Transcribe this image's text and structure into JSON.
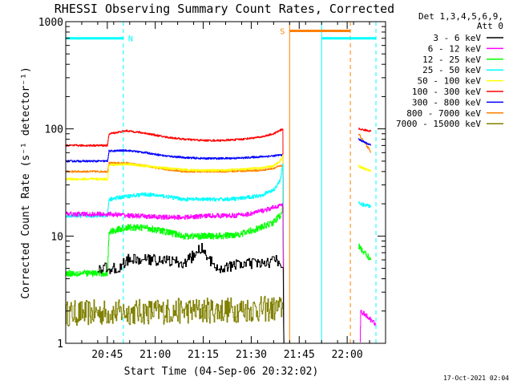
{
  "chart_data": {
    "type": "line",
    "title": "RHESSI Observing Summary Count Rates, Corrected",
    "xlabel": "Start Time (04-Sep-06 20:32:02)",
    "ylabel": "Corrected Count Rate (s⁻¹ detector⁻¹)",
    "y_scale": "log",
    "ylim": [
      1,
      1000
    ],
    "y_ticks": [
      {
        "value": 1,
        "label": "1"
      },
      {
        "value": 10,
        "label": "10"
      },
      {
        "value": 100,
        "label": "100"
      },
      {
        "value": 1000,
        "label": "1000"
      }
    ],
    "xlim_minutes_after_start": [
      0,
      100
    ],
    "x_ticks": [
      {
        "minute": 13,
        "label": "20:45"
      },
      {
        "minute": 28,
        "label": "21:00"
      },
      {
        "minute": 43,
        "label": "21:15"
      },
      {
        "minute": 58,
        "label": "21:30"
      },
      {
        "minute": 73,
        "label": "21:45"
      },
      {
        "minute": 88,
        "label": "22:00"
      }
    ],
    "legend_header": [
      "Det 1,3,4,5,6,9,",
      "Att 0"
    ],
    "legend_position": "right",
    "series": [
      {
        "name": "3 - 6 keV",
        "color": "#000000",
        "points": [
          [
            10,
            5
          ],
          [
            17,
            5
          ],
          [
            19,
            6
          ],
          [
            25,
            6
          ],
          [
            31,
            6
          ],
          [
            37,
            5.5
          ],
          [
            43,
            8
          ],
          [
            44,
            6
          ],
          [
            49,
            5
          ],
          [
            55,
            5.5
          ],
          [
            61,
            5.5
          ],
          [
            67,
            6
          ],
          [
            68,
            5
          ],
          [
            68.2,
            1
          ]
        ],
        "post_points": [],
        "noise": 0.12,
        "step": 0.25,
        "start_minute": 10
      },
      {
        "name": "6 - 12 keV",
        "color": "#ff00ff",
        "points": [
          [
            0,
            16
          ],
          [
            13,
            16
          ],
          [
            14,
            16
          ],
          [
            20,
            15.5
          ],
          [
            30,
            15
          ],
          [
            38,
            15
          ],
          [
            45,
            15.5
          ],
          [
            52,
            15.5
          ],
          [
            57,
            16
          ],
          [
            64,
            18
          ],
          [
            67,
            19.5
          ],
          [
            68,
            19
          ],
          [
            68.2,
            1
          ]
        ],
        "post_points": [
          [
            92,
            1
          ],
          [
            92.2,
            2
          ],
          [
            97,
            1.5
          ]
        ],
        "noise": 0.05,
        "step": 0.1
      },
      {
        "name": "12 - 25 keV",
        "color": "#00ff00",
        "points": [
          [
            0,
            4.5
          ],
          [
            13,
            4.5
          ],
          [
            13.5,
            11
          ],
          [
            19,
            12
          ],
          [
            25,
            12
          ],
          [
            31,
            11
          ],
          [
            37,
            10
          ],
          [
            43,
            10
          ],
          [
            49,
            10
          ],
          [
            55,
            10.5
          ],
          [
            61,
            12
          ],
          [
            65,
            13.5
          ],
          [
            67,
            15.5
          ],
          [
            68,
            19
          ],
          [
            68.2,
            1
          ]
        ],
        "post_points": [
          [
            91.5,
            8
          ],
          [
            95.5,
            6
          ]
        ],
        "noise": 0.07,
        "step": 0.1
      },
      {
        "name": "25 - 50 keV",
        "color": "#00ffff",
        "points": [
          [
            0,
            15.5
          ],
          [
            13,
            15.5
          ],
          [
            13.5,
            22
          ],
          [
            19,
            23.5
          ],
          [
            25,
            24.5
          ],
          [
            31,
            23.5
          ],
          [
            37,
            22
          ],
          [
            43,
            22
          ],
          [
            49,
            22
          ],
          [
            55,
            22.5
          ],
          [
            61,
            24
          ],
          [
            65,
            27
          ],
          [
            67,
            33
          ],
          [
            68,
            50
          ],
          [
            68.2,
            1
          ]
        ],
        "post_points": [
          [
            91.5,
            20
          ],
          [
            95.5,
            19
          ]
        ],
        "noise": 0.04,
        "step": 0.1
      },
      {
        "name": "50 - 100 keV",
        "color": "#ffff00",
        "points": [
          [
            0,
            34
          ],
          [
            13,
            34
          ],
          [
            13.5,
            46
          ],
          [
            19,
            47
          ],
          [
            25,
            45
          ],
          [
            31,
            43
          ],
          [
            37,
            41.5
          ],
          [
            43,
            41
          ],
          [
            49,
            41
          ],
          [
            55,
            42
          ],
          [
            61,
            43
          ],
          [
            65,
            45
          ],
          [
            67,
            50
          ],
          [
            68,
            58
          ],
          [
            68.2,
            1
          ]
        ],
        "post_points": [
          [
            91.5,
            45
          ],
          [
            95.5,
            40
          ]
        ],
        "noise": 0.025,
        "step": 0.1
      },
      {
        "name": "100 - 300 keV",
        "color": "#ff0000",
        "points": [
          [
            0,
            70
          ],
          [
            13,
            70
          ],
          [
            13.5,
            90
          ],
          [
            19,
            96
          ],
          [
            25,
            91
          ],
          [
            31,
            84
          ],
          [
            37,
            80
          ],
          [
            43,
            78
          ],
          [
            49,
            78
          ],
          [
            55,
            80
          ],
          [
            61,
            84
          ],
          [
            65,
            90
          ],
          [
            67,
            97
          ],
          [
            68,
            100
          ],
          [
            68.2,
            1
          ]
        ],
        "post_points": [
          [
            91.5,
            100
          ],
          [
            95.5,
            95
          ]
        ],
        "noise": 0.02,
        "step": 0.1
      },
      {
        "name": "300 - 800 keV",
        "color": "#0000ff",
        "points": [
          [
            0,
            50
          ],
          [
            13,
            50
          ],
          [
            13.5,
            62
          ],
          [
            19,
            63
          ],
          [
            25,
            60
          ],
          [
            31,
            56
          ],
          [
            37,
            54
          ],
          [
            43,
            53
          ],
          [
            49,
            53
          ],
          [
            55,
            53.5
          ],
          [
            61,
            55
          ],
          [
            65,
            56
          ],
          [
            67,
            57
          ],
          [
            68,
            57
          ],
          [
            68.2,
            1
          ]
        ],
        "post_points": [
          [
            91.5,
            80
          ],
          [
            95.5,
            70
          ]
        ],
        "noise": 0.02,
        "step": 0.1
      },
      {
        "name": "800 - 7000 keV",
        "color": "#ff8000",
        "points": [
          [
            0,
            40
          ],
          [
            13,
            40
          ],
          [
            13.5,
            48
          ],
          [
            19,
            48
          ],
          [
            25,
            45
          ],
          [
            31,
            42
          ],
          [
            37,
            40
          ],
          [
            43,
            40
          ],
          [
            49,
            40
          ],
          [
            55,
            40.5
          ],
          [
            61,
            41
          ],
          [
            65,
            43
          ],
          [
            67,
            45
          ],
          [
            68,
            45
          ],
          [
            68.2,
            1
          ]
        ],
        "post_points": [
          [
            91.5,
            90
          ],
          [
            95.5,
            60
          ]
        ],
        "noise": 0.02,
        "step": 0.1
      },
      {
        "name": "7000 - 15000 keV",
        "color": "#808000",
        "points": [
          [
            0,
            1.9
          ],
          [
            67,
            2.1
          ],
          [
            68,
            2.2
          ],
          [
            68.2,
            1
          ]
        ],
        "post_points": [],
        "noise": 0.28,
        "step": 0.2
      }
    ],
    "segments": [
      {
        "label": "N",
        "color": "#00ffff",
        "value": 700,
        "start": 0,
        "end": 18
      },
      {
        "label": "",
        "color": "#00ffff",
        "value": 700,
        "start": 80,
        "end": 97
      },
      {
        "label": "S",
        "color": "#ff8000",
        "value": 820,
        "start": 70,
        "end": 89
      }
    ],
    "event_lines": [
      {
        "minute": 18,
        "color": "#00ffff",
        "style": "dashed"
      },
      {
        "minute": 80,
        "color": "#00ffff",
        "style": "solid"
      },
      {
        "minute": 97,
        "color": "#00ffff",
        "style": "dashed"
      },
      {
        "minute": 70,
        "color": "#ff8000",
        "style": "solid"
      },
      {
        "minute": 89,
        "color": "#ff8000",
        "style": "dashed"
      }
    ]
  },
  "footer": {
    "date_stamp": "17-Oct-2021 02:04"
  }
}
